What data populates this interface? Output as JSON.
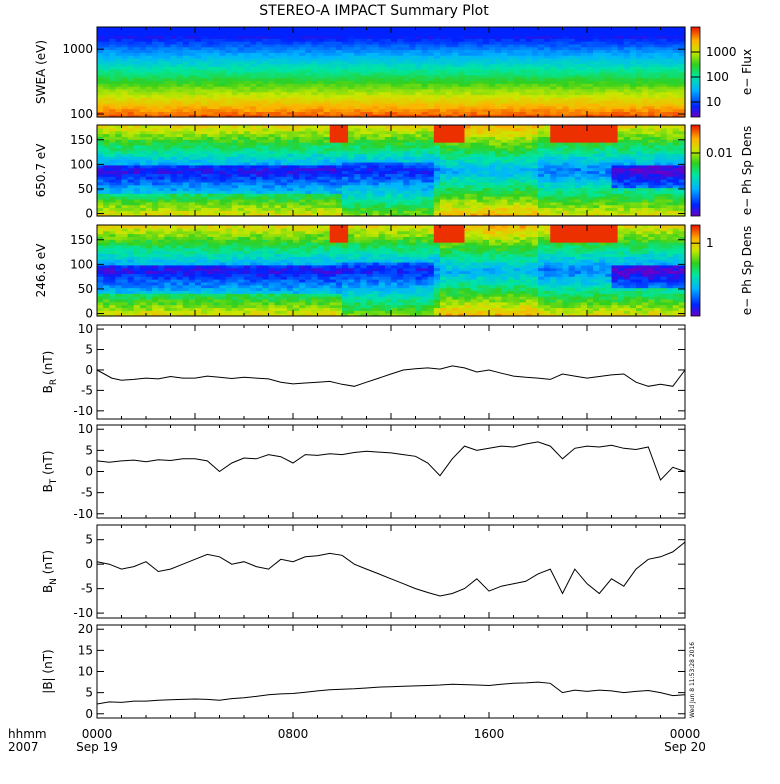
{
  "chart_data": {
    "title": "STEREO-A IMPACT Summary Plot",
    "x_axis": {
      "corner_label_top": "hhmm",
      "corner_label_bottom": "2007",
      "range_hours": [
        0,
        24
      ],
      "ticks": [
        {
          "hour": 0,
          "label": "0000",
          "sub": "Sep 19"
        },
        {
          "hour": 8,
          "label": "0800",
          "sub": ""
        },
        {
          "hour": 16,
          "label": "1600",
          "sub": ""
        },
        {
          "hour": 24,
          "label": "0000",
          "sub": "Sep 20"
        }
      ]
    },
    "timestamp": "Wed Jun  8 11:53:28 2016",
    "spectrograms": [
      {
        "type": "heatmap",
        "id": "swea",
        "ylabel": "SWEA (eV)",
        "ylog": true,
        "ylim": [
          90,
          2200
        ],
        "yticks": [
          {
            "v": 100,
            "label": "100"
          },
          {
            "v": 1000,
            "label": "1000"
          }
        ],
        "colorbar_label": "e− Flux",
        "colorbar_ticks": [
          {
            "v": 10,
            "label": "10"
          },
          {
            "v": 100,
            "label": "100"
          },
          {
            "v": 1000,
            "label": "1000"
          }
        ],
        "colorbar_log_range": [
          0.4,
          4.0
        ]
      },
      {
        "type": "heatmap",
        "id": "pad650",
        "ylabel": "650.7 eV",
        "ylim": [
          -5,
          180
        ],
        "yticks": [
          {
            "v": 0,
            "label": "0"
          },
          {
            "v": 50,
            "label": "50"
          },
          {
            "v": 100,
            "label": "100"
          },
          {
            "v": 150,
            "label": "150"
          }
        ],
        "colorbar_label": "e− Ph Sp Dens",
        "colorbar_ticks": [
          {
            "v": 0.01,
            "label": "0.01"
          }
        ],
        "colorbar_log_range": [
          -2.9,
          -1.6
        ]
      },
      {
        "type": "heatmap",
        "id": "pad246",
        "ylabel": "246.6 eV",
        "ylim": [
          -5,
          180
        ],
        "yticks": [
          {
            "v": 0,
            "label": "0"
          },
          {
            "v": 50,
            "label": "50"
          },
          {
            "v": 100,
            "label": "100"
          },
          {
            "v": 150,
            "label": "150"
          }
        ],
        "colorbar_label": "e− Ph Sp Dens",
        "colorbar_ticks": [
          {
            "v": 1,
            "label": "1"
          }
        ],
        "colorbar_log_range": [
          -1.2,
          0.3
        ]
      }
    ],
    "line_panels": [
      {
        "type": "line",
        "id": "br",
        "ylabel_main": "B",
        "ylabel_sub": "R",
        "ylabel_unit": " (nT)",
        "ylim": [
          -12,
          11
        ],
        "yticks": [
          -10,
          -5,
          0,
          5,
          10
        ],
        "series": [
          {
            "x": [
              0,
              0.3,
              0.6,
              1,
              1.5,
              2,
              2.5,
              3,
              3.5,
              4,
              4.5,
              5,
              5.5,
              6,
              6.5,
              7,
              7.5,
              8,
              8.5,
              9,
              9.5,
              10,
              10.5,
              11,
              11.5,
              12,
              12.5,
              13,
              13.5,
              14,
              14.5,
              15,
              15.5,
              16,
              16.5,
              17,
              17.5,
              18,
              18.5,
              19,
              19.5,
              20,
              20.5,
              21,
              21.5,
              22,
              22.5,
              23,
              23.5,
              24
            ],
            "y": [
              0,
              -1,
              -2,
              -2.5,
              -2.3,
              -2,
              -2.2,
              -1.6,
              -2,
              -2,
              -1.5,
              -1.8,
              -2.1,
              -1.8,
              -2,
              -2.2,
              -3,
              -3.4,
              -3.2,
              -3,
              -2.8,
              -3.5,
              -4,
              -3,
              -2,
              -1,
              0,
              0.3,
              0.5,
              0.2,
              1,
              0.5,
              -0.5,
              0,
              -0.8,
              -1.5,
              -1.8,
              -2,
              -2.3,
              -1,
              -1.5,
              -2,
              -1.6,
              -1.2,
              -1,
              -3,
              -4,
              -3.5,
              -4,
              0
            ]
          }
        ]
      },
      {
        "type": "line",
        "id": "bt",
        "ylabel_main": "B",
        "ylabel_sub": "T",
        "ylabel_unit": " (nT)",
        "ylim": [
          -11,
          11
        ],
        "yticks": [
          -10,
          -5,
          0,
          5,
          10
        ],
        "series": [
          {
            "x": [
              0,
              0.5,
              1,
              1.5,
              2,
              2.5,
              3,
              3.5,
              4,
              4.5,
              5,
              5.5,
              6,
              6.5,
              7,
              7.5,
              8,
              8.5,
              9,
              9.5,
              10,
              10.5,
              11,
              11.5,
              12,
              12.5,
              13,
              13.5,
              14,
              14.5,
              15,
              15.5,
              16,
              16.5,
              17,
              17.5,
              18,
              18.5,
              19,
              19.5,
              20,
              20.5,
              21,
              21.5,
              22,
              22.5,
              23,
              23.5,
              24
            ],
            "y": [
              2.5,
              2.2,
              2.5,
              2.7,
              2.3,
              2.8,
              2.6,
              3,
              3,
              2.5,
              0,
              2,
              3.2,
              3,
              4,
              3.5,
              2,
              4,
              3.8,
              4.2,
              4,
              4.5,
              4.8,
              4.6,
              4.4,
              4,
              3.6,
              2,
              -1,
              3,
              6,
              5,
              5.5,
              6,
              5.8,
              6.5,
              7,
              6,
              3,
              5.5,
              6,
              5.8,
              6.2,
              5.5,
              5.2,
              5.8,
              -2,
              1,
              0
            ]
          }
        ]
      },
      {
        "type": "line",
        "id": "bn",
        "ylabel_main": "B",
        "ylabel_sub": "N",
        "ylabel_unit": " (nT)",
        "ylim": [
          -11,
          8
        ],
        "yticks": [
          -10,
          -5,
          0,
          5
        ],
        "series": [
          {
            "x": [
              0,
              0.5,
              1,
              1.5,
              2,
              2.5,
              3,
              3.5,
              4,
              4.5,
              5,
              5.5,
              6,
              6.5,
              7,
              7.5,
              8,
              8.5,
              9,
              9.5,
              10,
              10.5,
              11,
              11.5,
              12,
              12.5,
              13,
              13.5,
              14,
              14.5,
              15,
              15.5,
              16,
              16.5,
              17,
              17.5,
              18,
              18.5,
              19,
              19.5,
              20,
              20.5,
              21,
              21.5,
              22,
              22.5,
              23,
              23.5,
              24
            ],
            "y": [
              0.5,
              0,
              -1,
              -0.5,
              0.5,
              -1.5,
              -1,
              0,
              1,
              2,
              1.5,
              0,
              0.5,
              -0.5,
              -1,
              1,
              0.5,
              1.5,
              1.7,
              2.2,
              1.8,
              0,
              -1,
              -2,
              -3,
              -4,
              -5,
              -5.8,
              -6.5,
              -6,
              -5,
              -3,
              -5.5,
              -4.5,
              -4,
              -3.5,
              -2,
              -1,
              -6,
              -1,
              -4,
              -6,
              -3,
              -4.5,
              -1,
              1,
              1.5,
              2.5,
              4.5
            ]
          }
        ]
      },
      {
        "type": "line",
        "id": "bmag",
        "ylabel_main": "|B|",
        "ylabel_sub": "",
        "ylabel_unit": " (nT)",
        "ylim": [
          -1,
          21
        ],
        "yticks": [
          0,
          5,
          10,
          15,
          20
        ],
        "series": [
          {
            "x": [
              0,
              0.5,
              1,
              1.5,
              2,
              2.5,
              3,
              3.5,
              4,
              4.5,
              5,
              5.5,
              6,
              6.5,
              7,
              7.5,
              8,
              8.5,
              9,
              9.5,
              10,
              10.5,
              11,
              11.5,
              12,
              12.5,
              13,
              13.5,
              14,
              14.5,
              15,
              15.5,
              16,
              16.5,
              17,
              17.5,
              18,
              18.5,
              19,
              19.5,
              20,
              20.5,
              21,
              21.5,
              22,
              22.5,
              23,
              23.5,
              24
            ],
            "y": [
              2.3,
              2.8,
              2.7,
              3,
              3,
              3.2,
              3.3,
              3.4,
              3.5,
              3.4,
              3.2,
              3.6,
              3.8,
              4.1,
              4.5,
              4.7,
              4.8,
              5.1,
              5.4,
              5.7,
              5.8,
              5.9,
              6.1,
              6.3,
              6.4,
              6.5,
              6.6,
              6.7,
              6.8,
              7,
              6.9,
              6.8,
              6.7,
              7,
              7.2,
              7.3,
              7.5,
              7.2,
              5,
              5.6,
              5.3,
              5.6,
              5.4,
              5,
              5.3,
              5.5,
              5,
              4.3,
              4.5
            ]
          }
        ]
      }
    ]
  }
}
